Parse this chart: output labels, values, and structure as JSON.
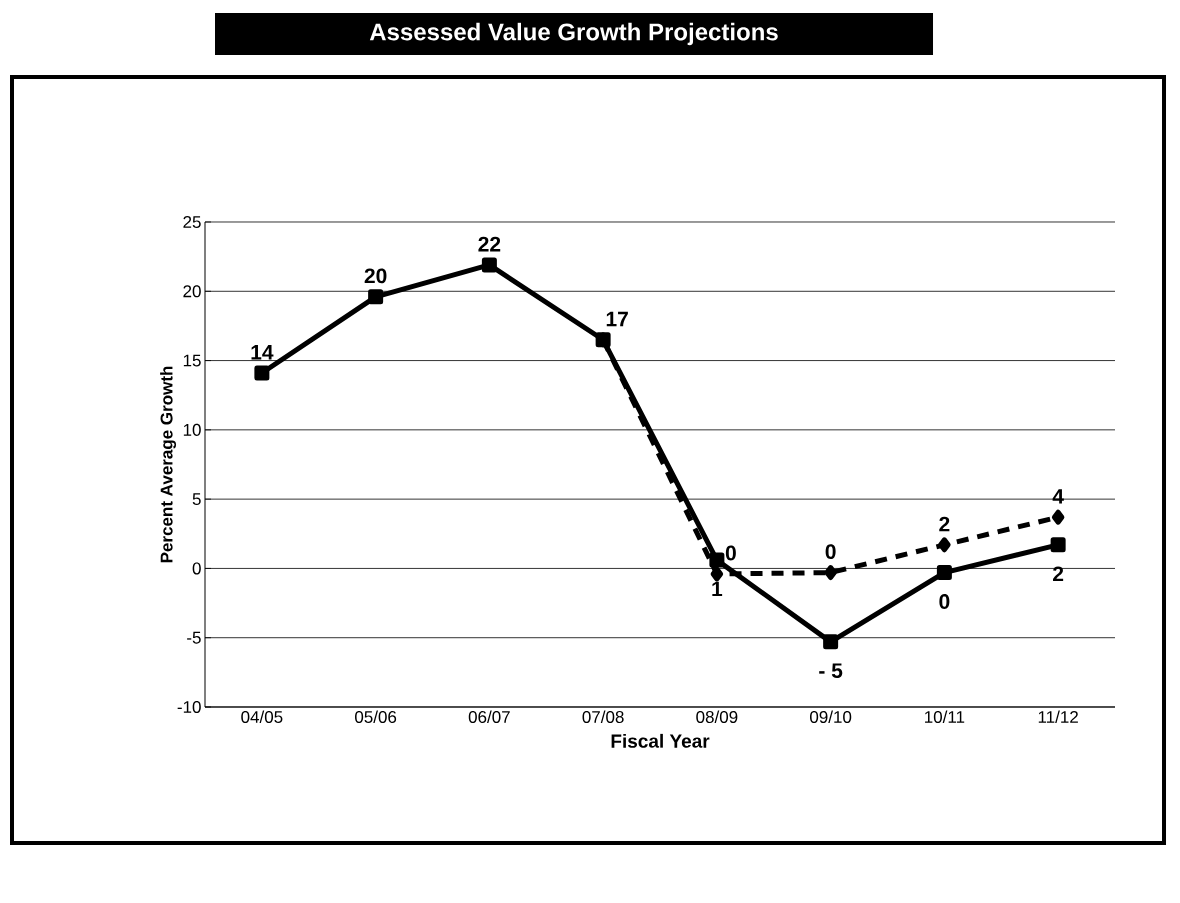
{
  "chart_data": {
    "type": "line",
    "title": "Assessed Value Growth Projections",
    "xlabel": "Fiscal Year",
    "ylabel": "Percent Average Growth",
    "categories": [
      "04/05",
      "05/06",
      "06/07",
      "07/08",
      "08/09",
      "09/10",
      "10/11",
      "11/12"
    ],
    "series": [
      {
        "color": "#000000",
        "marker": "square",
        "line_style": "solid",
        "values": [
          14.1,
          19.6,
          21.9,
          16.5,
          0.6,
          -5.3,
          -0.3,
          1.7
        ],
        "value_labels": [
          "14",
          "20",
          "22",
          "17",
          "1",
          "- 5",
          "0",
          "2"
        ]
      },
      {
        "color": "#000000",
        "marker": "diamond",
        "line_style": "dashed",
        "values": [
          null,
          null,
          null,
          16.5,
          -0.4,
          -0.3,
          1.7,
          3.7
        ],
        "value_labels": [
          null,
          null,
          null,
          null,
          "0",
          "0",
          "2",
          "4"
        ]
      }
    ],
    "ylim": [
      -10,
      25
    ],
    "yticks": [
      -10,
      -5,
      0,
      5,
      10,
      15,
      20,
      25
    ],
    "grid": "y"
  }
}
